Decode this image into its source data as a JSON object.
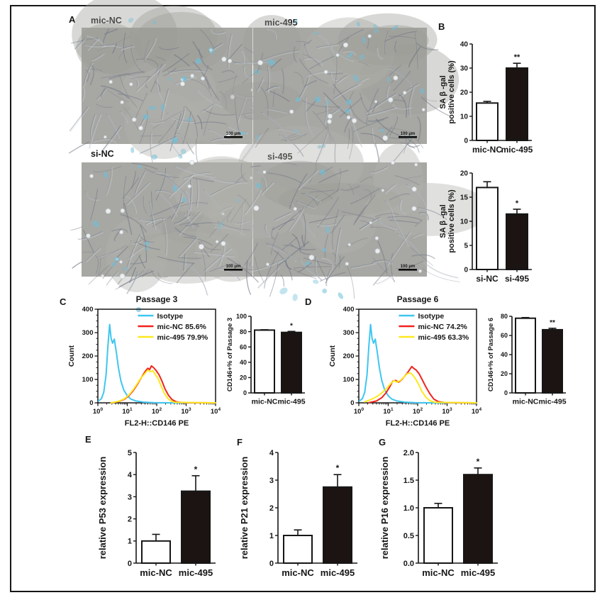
{
  "panels": {
    "a": "A",
    "b": "B",
    "c": "C",
    "d": "D",
    "e": "E",
    "f": "F",
    "g": "G"
  },
  "micrographs": [
    {
      "label": "mic-NC",
      "scale_bar": "100 μm"
    },
    {
      "label": "mic-495",
      "scale_bar": "100 μm"
    },
    {
      "label": "si-NC",
      "scale_bar": "100 μm"
    },
    {
      "label": "si-495",
      "scale_bar": "100 μm"
    }
  ],
  "colors": {
    "axis": "#161616",
    "bar_control_fill": "#ffffff",
    "bar_treated_fill": "#1b1412",
    "isotype": "#3fc6f0",
    "red_series": "#f0241d",
    "yellow_series": "#ffe81e"
  },
  "chart_data": [
    {
      "id": "b-top",
      "type": "bar",
      "panel": "B",
      "ylabel_lines": [
        "SA β -gal",
        "positive cells (%)"
      ],
      "ylim": [
        0,
        40
      ],
      "yticks": [
        0,
        10,
        20,
        30,
        40
      ],
      "ytick_decimals": 0,
      "categories": [
        "mic-NC",
        "mic-495"
      ],
      "values": [
        15.5,
        30
      ],
      "errors": [
        0.7,
        2
      ],
      "sig": [
        "",
        "**"
      ],
      "bar_fills": [
        "#ffffff",
        "#1b1412"
      ]
    },
    {
      "id": "b-bottom",
      "type": "bar",
      "panel": "B",
      "ylabel_lines": [
        "SA β -gal",
        "positive cells (%)"
      ],
      "ylim": [
        0,
        20
      ],
      "yticks": [
        0,
        5,
        10,
        15,
        20
      ],
      "ytick_decimals": 0,
      "categories": [
        "si-NC",
        "si-495"
      ],
      "values": [
        17,
        11.5
      ],
      "errors": [
        1.2,
        1
      ],
      "sig": [
        "",
        "*"
      ],
      "bar_fills": [
        "#ffffff",
        "#1b1412"
      ]
    },
    {
      "id": "c-hist",
      "type": "histogram",
      "panel": "C",
      "title": "Passage 3",
      "ylabel": "Count",
      "xlabel": "FL2-H::CD146 PE",
      "ylim": [
        0,
        400
      ],
      "yticks": [
        0,
        100,
        200,
        300,
        400
      ],
      "xtick_exponents": [
        0,
        1,
        2,
        3,
        4
      ],
      "legend_position": "top-right",
      "grid": false,
      "series": [
        {
          "name": "Isotype",
          "color": "#3fc6f0",
          "points": [
            [
              0.02,
              8
            ],
            [
              0.12,
              18
            ],
            [
              0.2,
              45
            ],
            [
              0.28,
              120
            ],
            [
              0.34,
              240
            ],
            [
              0.4,
              335
            ],
            [
              0.45,
              275
            ],
            [
              0.5,
              255
            ],
            [
              0.56,
              272
            ],
            [
              0.63,
              215
            ],
            [
              0.7,
              150
            ],
            [
              0.78,
              95
            ],
            [
              0.88,
              55
            ],
            [
              1.0,
              30
            ],
            [
              1.12,
              16
            ],
            [
              1.3,
              8
            ],
            [
              1.55,
              3
            ],
            [
              1.9,
              1
            ],
            [
              2.5,
              0
            ],
            [
              4,
              0
            ]
          ]
        },
        {
          "name": "mic-NC 85.6%",
          "color": "#f0241d",
          "points": [
            [
              0.45,
              0
            ],
            [
              0.7,
              5
            ],
            [
              0.9,
              15
            ],
            [
              1.05,
              30
            ],
            [
              1.2,
              52
            ],
            [
              1.35,
              80
            ],
            [
              1.45,
              102
            ],
            [
              1.55,
              122
            ],
            [
              1.63,
              138
            ],
            [
              1.7,
              148
            ],
            [
              1.76,
              142
            ],
            [
              1.82,
              158
            ],
            [
              1.9,
              150
            ],
            [
              1.98,
              138
            ],
            [
              2.08,
              120
            ],
            [
              2.18,
              92
            ],
            [
              2.28,
              60
            ],
            [
              2.4,
              32
            ],
            [
              2.52,
              14
            ],
            [
              2.65,
              5
            ],
            [
              2.85,
              1
            ],
            [
              4,
              0
            ]
          ]
        },
        {
          "name": "mic-495 79.9%",
          "color": "#ffe81e",
          "points": [
            [
              0.45,
              0
            ],
            [
              0.7,
              6
            ],
            [
              0.9,
              17
            ],
            [
              1.05,
              33
            ],
            [
              1.2,
              56
            ],
            [
              1.35,
              84
            ],
            [
              1.45,
              104
            ],
            [
              1.55,
              118
            ],
            [
              1.63,
              130
            ],
            [
              1.7,
              140
            ],
            [
              1.78,
              133
            ],
            [
              1.86,
              138
            ],
            [
              1.95,
              122
            ],
            [
              2.05,
              102
            ],
            [
              2.15,
              72
            ],
            [
              2.25,
              42
            ],
            [
              2.38,
              18
            ],
            [
              2.5,
              7
            ],
            [
              2.62,
              2
            ],
            [
              4,
              0
            ]
          ]
        }
      ]
    },
    {
      "id": "c-bar",
      "type": "bar",
      "panel": "C",
      "ylabel_lines": [
        "CD146+% of Passage 3"
      ],
      "ylim": [
        0,
        100
      ],
      "yticks": [
        0,
        20,
        40,
        60,
        80,
        100
      ],
      "ytick_decimals": 0,
      "categories": [
        "mic-NC",
        "mic-495"
      ],
      "values": [
        82,
        79
      ],
      "errors": [
        0.5,
        1.3
      ],
      "sig": [
        "",
        "*"
      ],
      "bar_fills": [
        "#ffffff",
        "#1b1412"
      ]
    },
    {
      "id": "d-hist",
      "type": "histogram",
      "panel": "D",
      "title": "Passage 6",
      "ylabel": "Count",
      "xlabel": "FL2-H::CD146 PE",
      "ylim": [
        0,
        400
      ],
      "yticks": [
        0,
        100,
        200,
        300,
        400
      ],
      "xtick_exponents": [
        0,
        1,
        2,
        3,
        4
      ],
      "legend_position": "top-right",
      "grid": false,
      "series": [
        {
          "name": "Isotype",
          "color": "#3fc6f0",
          "points": [
            [
              0.02,
              8
            ],
            [
              0.12,
              18
            ],
            [
              0.2,
              45
            ],
            [
              0.28,
              120
            ],
            [
              0.34,
              240
            ],
            [
              0.4,
              335
            ],
            [
              0.45,
              275
            ],
            [
              0.5,
              255
            ],
            [
              0.56,
              272
            ],
            [
              0.63,
              215
            ],
            [
              0.7,
              150
            ],
            [
              0.78,
              95
            ],
            [
              0.88,
              55
            ],
            [
              1.0,
              30
            ],
            [
              1.12,
              16
            ],
            [
              1.3,
              8
            ],
            [
              1.55,
              3
            ],
            [
              1.9,
              1
            ],
            [
              2.5,
              0
            ],
            [
              4,
              0
            ]
          ]
        },
        {
          "name": "mic-NC 74.2%",
          "color": "#f0241d",
          "points": [
            [
              0.35,
              1
            ],
            [
              0.6,
              8
            ],
            [
              0.78,
              22
            ],
            [
              0.92,
              42
            ],
            [
              1.05,
              68
            ],
            [
              1.15,
              92
            ],
            [
              1.25,
              96
            ],
            [
              1.35,
              88
            ],
            [
              1.45,
              98
            ],
            [
              1.55,
              112
            ],
            [
              1.65,
              128
            ],
            [
              1.73,
              142
            ],
            [
              1.8,
              155
            ],
            [
              1.87,
              147
            ],
            [
              1.95,
              140
            ],
            [
              2.05,
              124
            ],
            [
              2.15,
              100
            ],
            [
              2.28,
              68
            ],
            [
              2.42,
              38
            ],
            [
              2.55,
              16
            ],
            [
              2.7,
              5
            ],
            [
              2.95,
              1
            ],
            [
              4,
              0
            ]
          ]
        },
        {
          "name": "mic-495 63.3%",
          "color": "#ffe81e",
          "points": [
            [
              0.2,
              4
            ],
            [
              0.45,
              16
            ],
            [
              0.65,
              30
            ],
            [
              0.8,
              45
            ],
            [
              0.95,
              62
            ],
            [
              1.1,
              85
            ],
            [
              1.2,
              95
            ],
            [
              1.3,
              88
            ],
            [
              1.42,
              96
            ],
            [
              1.55,
              112
            ],
            [
              1.65,
              125
            ],
            [
              1.75,
              128
            ],
            [
              1.85,
              116
            ],
            [
              1.95,
              98
            ],
            [
              2.05,
              74
            ],
            [
              2.15,
              48
            ],
            [
              2.28,
              24
            ],
            [
              2.42,
              9
            ],
            [
              2.58,
              2
            ],
            [
              4,
              0
            ]
          ]
        }
      ]
    },
    {
      "id": "d-bar",
      "type": "bar",
      "panel": "D",
      "ylabel_lines": [
        "CD146+% of Passage 6"
      ],
      "ylim": [
        0,
        80
      ],
      "yticks": [
        0,
        20,
        40,
        60,
        80
      ],
      "ytick_decimals": 0,
      "categories": [
        "mic-NC",
        "mic-495"
      ],
      "values": [
        78,
        66
      ],
      "errors": [
        0.7,
        1.5
      ],
      "sig": [
        "",
        "**"
      ],
      "bar_fills": [
        "#ffffff",
        "#1b1412"
      ]
    },
    {
      "id": "e-bar",
      "type": "bar",
      "panel": "E",
      "ylabel_lines": [
        "relative P53  expression"
      ],
      "ylim": [
        0,
        5
      ],
      "yticks": [
        0,
        1,
        2,
        3,
        4,
        5
      ],
      "ytick_decimals": 0,
      "categories": [
        "mic-NC",
        "mic-495"
      ],
      "values": [
        1,
        3.25
      ],
      "errors": [
        0.3,
        0.7
      ],
      "sig": [
        "",
        "*"
      ],
      "bar_fills": [
        "#ffffff",
        "#1b1412"
      ]
    },
    {
      "id": "f-bar",
      "type": "bar",
      "panel": "F",
      "ylabel_lines": [
        "relative P21  expression"
      ],
      "ylim": [
        0,
        4
      ],
      "yticks": [
        0,
        1,
        2,
        3,
        4
      ],
      "ytick_decimals": 0,
      "categories": [
        "mic-NC",
        "mic-495"
      ],
      "values": [
        1,
        2.75
      ],
      "errors": [
        0.2,
        0.45
      ],
      "sig": [
        "",
        "*"
      ],
      "bar_fills": [
        "#ffffff",
        "#1b1412"
      ]
    },
    {
      "id": "g-bar",
      "type": "bar",
      "panel": "G",
      "ylabel_lines": [
        "relative P16  expression"
      ],
      "ylim": [
        0,
        2
      ],
      "yticks": [
        0,
        0.5,
        1.0,
        1.5,
        2.0
      ],
      "ytick_decimals": 1,
      "categories": [
        "mic-NC",
        "mic-495"
      ],
      "values": [
        1,
        1.6
      ],
      "errors": [
        0.08,
        0.12
      ],
      "sig": [
        "",
        "*"
      ],
      "bar_fills": [
        "#ffffff",
        "#1b1412"
      ]
    }
  ]
}
